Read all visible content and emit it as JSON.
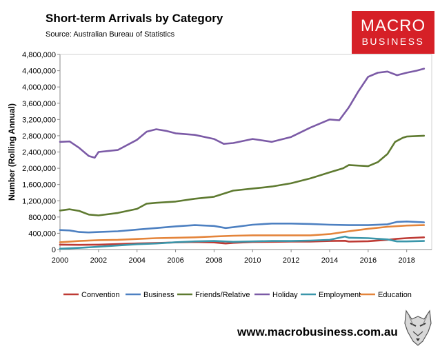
{
  "title": "Short-term Arrivals by Category",
  "subtitle": "Source: Australian Bureau of Statistics",
  "logo": {
    "line1": "MACRO",
    "line2": "BUSINESS",
    "color": "#d62027"
  },
  "footer_url": "www.macrobusiness.com.au",
  "wolf_icon": "wolf-head-icon",
  "chart_data": {
    "type": "line",
    "title": "Short-term Arrivals by Category",
    "subtitle": "Source: Australian Bureau of Statistics",
    "xlabel": "",
    "ylabel": "Number (Rolling Annual)",
    "xlim": [
      2000,
      2019.3
    ],
    "ylim": [
      0,
      4800000
    ],
    "x_ticks": [
      2000,
      2002,
      2004,
      2006,
      2008,
      2010,
      2012,
      2014,
      2016,
      2018
    ],
    "x_tick_labels": [
      "2000",
      "2002",
      "2004",
      "2006",
      "2008",
      "2010",
      "2012",
      "2014",
      "2016",
      "2018"
    ],
    "y_ticks": [
      0,
      400000,
      800000,
      1200000,
      1600000,
      2000000,
      2400000,
      2800000,
      3200000,
      3600000,
      4000000,
      4400000,
      4800000
    ],
    "y_tick_labels": [
      "0",
      "400,000",
      "800,000",
      "1,200,000",
      "1,600,000",
      "2,000,000",
      "2,400,000",
      "2,800,000",
      "3,200,000",
      "3,600,000",
      "4,000,000",
      "4,400,000",
      "4,800,000"
    ],
    "grid": false,
    "legend_position": "bottom",
    "series": [
      {
        "name": "Convention",
        "color": "#be3a34",
        "points": [
          [
            2000,
            120000
          ],
          [
            2001,
            115000
          ],
          [
            2002,
            120000
          ],
          [
            2003,
            135000
          ],
          [
            2004,
            150000
          ],
          [
            2005,
            160000
          ],
          [
            2006,
            175000
          ],
          [
            2007,
            185000
          ],
          [
            2008,
            175000
          ],
          [
            2008.6,
            150000
          ],
          [
            2009,
            165000
          ],
          [
            2010,
            185000
          ],
          [
            2011,
            190000
          ],
          [
            2012,
            195000
          ],
          [
            2013,
            195000
          ],
          [
            2014,
            210000
          ],
          [
            2014.8,
            215000
          ],
          [
            2015,
            195000
          ],
          [
            2016,
            205000
          ],
          [
            2017,
            240000
          ],
          [
            2017.5,
            265000
          ],
          [
            2018,
            280000
          ],
          [
            2018.9,
            300000
          ]
        ]
      },
      {
        "name": "Business",
        "color": "#4d80c1",
        "points": [
          [
            2000,
            480000
          ],
          [
            2000.5,
            470000
          ],
          [
            2001,
            430000
          ],
          [
            2001.5,
            420000
          ],
          [
            2002,
            430000
          ],
          [
            2003,
            450000
          ],
          [
            2004,
            490000
          ],
          [
            2005,
            530000
          ],
          [
            2006,
            570000
          ],
          [
            2007,
            600000
          ],
          [
            2008,
            580000
          ],
          [
            2008.6,
            530000
          ],
          [
            2009,
            550000
          ],
          [
            2010,
            610000
          ],
          [
            2011,
            640000
          ],
          [
            2012,
            640000
          ],
          [
            2013,
            630000
          ],
          [
            2014,
            610000
          ],
          [
            2015,
            600000
          ],
          [
            2016,
            600000
          ],
          [
            2017,
            620000
          ],
          [
            2017.5,
            680000
          ],
          [
            2018,
            690000
          ],
          [
            2018.9,
            670000
          ]
        ]
      },
      {
        "name": "Friends/Relative",
        "color": "#5e7a30",
        "points": [
          [
            2000,
            960000
          ],
          [
            2000.5,
            990000
          ],
          [
            2001,
            950000
          ],
          [
            2001.5,
            860000
          ],
          [
            2002,
            840000
          ],
          [
            2003,
            900000
          ],
          [
            2004,
            1000000
          ],
          [
            2004.5,
            1130000
          ],
          [
            2005,
            1150000
          ],
          [
            2006,
            1180000
          ],
          [
            2007,
            1250000
          ],
          [
            2008,
            1300000
          ],
          [
            2009,
            1450000
          ],
          [
            2010,
            1500000
          ],
          [
            2011,
            1550000
          ],
          [
            2012,
            1630000
          ],
          [
            2013,
            1750000
          ],
          [
            2014,
            1900000
          ],
          [
            2014.7,
            2000000
          ],
          [
            2015,
            2080000
          ],
          [
            2016,
            2050000
          ],
          [
            2016.5,
            2150000
          ],
          [
            2017,
            2350000
          ],
          [
            2017.4,
            2650000
          ],
          [
            2017.8,
            2750000
          ],
          [
            2018,
            2780000
          ],
          [
            2018.9,
            2800000
          ]
        ]
      },
      {
        "name": "Holiday",
        "color": "#7b5aa6",
        "points": [
          [
            2000,
            2650000
          ],
          [
            2000.5,
            2660000
          ],
          [
            2001,
            2500000
          ],
          [
            2001.5,
            2300000
          ],
          [
            2001.8,
            2260000
          ],
          [
            2002,
            2400000
          ],
          [
            2003,
            2450000
          ],
          [
            2004,
            2700000
          ],
          [
            2004.5,
            2900000
          ],
          [
            2005,
            2960000
          ],
          [
            2005.5,
            2920000
          ],
          [
            2006,
            2860000
          ],
          [
            2007,
            2820000
          ],
          [
            2008,
            2720000
          ],
          [
            2008.5,
            2600000
          ],
          [
            2009,
            2620000
          ],
          [
            2010,
            2720000
          ],
          [
            2011,
            2650000
          ],
          [
            2012,
            2770000
          ],
          [
            2013,
            3000000
          ],
          [
            2014,
            3200000
          ],
          [
            2014.5,
            3180000
          ],
          [
            2015,
            3500000
          ],
          [
            2015.5,
            3900000
          ],
          [
            2016,
            4250000
          ],
          [
            2016.5,
            4350000
          ],
          [
            2017,
            4380000
          ],
          [
            2017.5,
            4290000
          ],
          [
            2018,
            4350000
          ],
          [
            2018.5,
            4400000
          ],
          [
            2018.9,
            4450000
          ]
        ]
      },
      {
        "name": "Employment",
        "color": "#3a96aa",
        "points": [
          [
            2000,
            20000
          ],
          [
            2001,
            40000
          ],
          [
            2002,
            70000
          ],
          [
            2003,
            100000
          ],
          [
            2004,
            130000
          ],
          [
            2005,
            150000
          ],
          [
            2006,
            180000
          ],
          [
            2007,
            200000
          ],
          [
            2008,
            210000
          ],
          [
            2009,
            190000
          ],
          [
            2010,
            200000
          ],
          [
            2011,
            210000
          ],
          [
            2012,
            210000
          ],
          [
            2013,
            220000
          ],
          [
            2014,
            240000
          ],
          [
            2014.8,
            320000
          ],
          [
            2015,
            290000
          ],
          [
            2016,
            280000
          ],
          [
            2017,
            250000
          ],
          [
            2017.5,
            200000
          ],
          [
            2018,
            200000
          ],
          [
            2018.9,
            210000
          ]
        ]
      },
      {
        "name": "Education",
        "color": "#e4843a",
        "points": [
          [
            2000,
            180000
          ],
          [
            2001,
            210000
          ],
          [
            2002,
            230000
          ],
          [
            2003,
            240000
          ],
          [
            2004,
            260000
          ],
          [
            2005,
            280000
          ],
          [
            2006,
            290000
          ],
          [
            2007,
            300000
          ],
          [
            2008,
            320000
          ],
          [
            2009,
            340000
          ],
          [
            2010,
            350000
          ],
          [
            2011,
            350000
          ],
          [
            2012,
            350000
          ],
          [
            2013,
            350000
          ],
          [
            2014,
            380000
          ],
          [
            2015,
            450000
          ],
          [
            2016,
            510000
          ],
          [
            2017,
            560000
          ],
          [
            2018,
            590000
          ],
          [
            2018.9,
            600000
          ]
        ]
      }
    ]
  }
}
